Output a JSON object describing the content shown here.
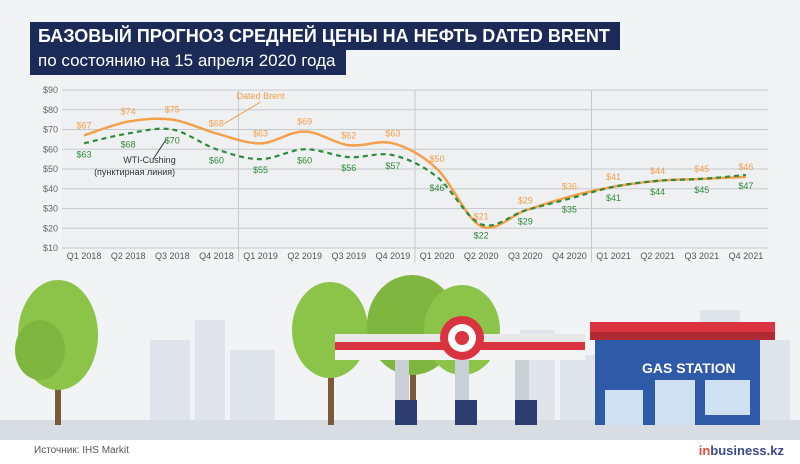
{
  "header": {
    "title": "БАЗОВЫЙ ПРОГНОЗ СРЕДНЕЙ ЦЕНЫ НА НЕФТЬ DATED BRENT",
    "subtitle": "по состоянию на 15 апреля 2020 года"
  },
  "chart_data": {
    "type": "line",
    "title": "БАЗОВЫЙ ПРОГНОЗ СРЕДНЕЙ ЦЕНЫ НА НЕФТЬ DATED BRENT",
    "subtitle": "по состоянию на 15 апреля 2020 года",
    "categories": [
      "Q1 2018",
      "Q2 2018",
      "Q3 2018",
      "Q4 2018",
      "Q1 2019",
      "Q2 2019",
      "Q3 2019",
      "Q4 2019",
      "Q1 2020",
      "Q2 2020",
      "Q3 2020",
      "Q4 2020",
      "Q1 2021",
      "Q2 2021",
      "Q3 2021",
      "Q4 2021"
    ],
    "yticks": [
      "$10",
      "$20",
      "$30",
      "$40",
      "$50",
      "$60",
      "$70",
      "$80",
      "$90"
    ],
    "ylim": [
      10,
      90
    ],
    "grid": true,
    "series": [
      {
        "name": "Dated Brent",
        "color": "#f5a04a",
        "style": "solid",
        "values": [
          67,
          74,
          75,
          68,
          63,
          69,
          62,
          63,
          50,
          21,
          29,
          36,
          41,
          44,
          45,
          46
        ],
        "labels": [
          "$67",
          "$74",
          "$75",
          "$68",
          "$63",
          "$69",
          "$62",
          "$63",
          "$50",
          "$21",
          "$29",
          "$36",
          "$41",
          "$44",
          "$45",
          "$46"
        ]
      },
      {
        "name": "WTI-Cushing (пунктирная линия)",
        "name_line1": "WTI-Cushing",
        "name_line2": "(пунктирная линия)",
        "color": "#2e8b3a",
        "style": "dashed",
        "values": [
          63,
          68,
          70,
          60,
          55,
          60,
          56,
          57,
          46,
          22,
          29,
          35,
          41,
          44,
          45,
          47
        ],
        "labels": [
          "$63",
          "$68",
          "$70",
          "$60",
          "$55",
          "$60",
          "$56",
          "$57",
          "$46",
          "$22",
          "$29",
          "$35",
          "$41",
          "$44",
          "$45",
          "$47"
        ]
      }
    ]
  },
  "illustration": {
    "station_sign": "GAS STATION"
  },
  "footer": {
    "source": "Источник: IHS Markit",
    "brand_prefix": "in",
    "brand_mid": "business",
    "brand_suffix": ".kz"
  }
}
